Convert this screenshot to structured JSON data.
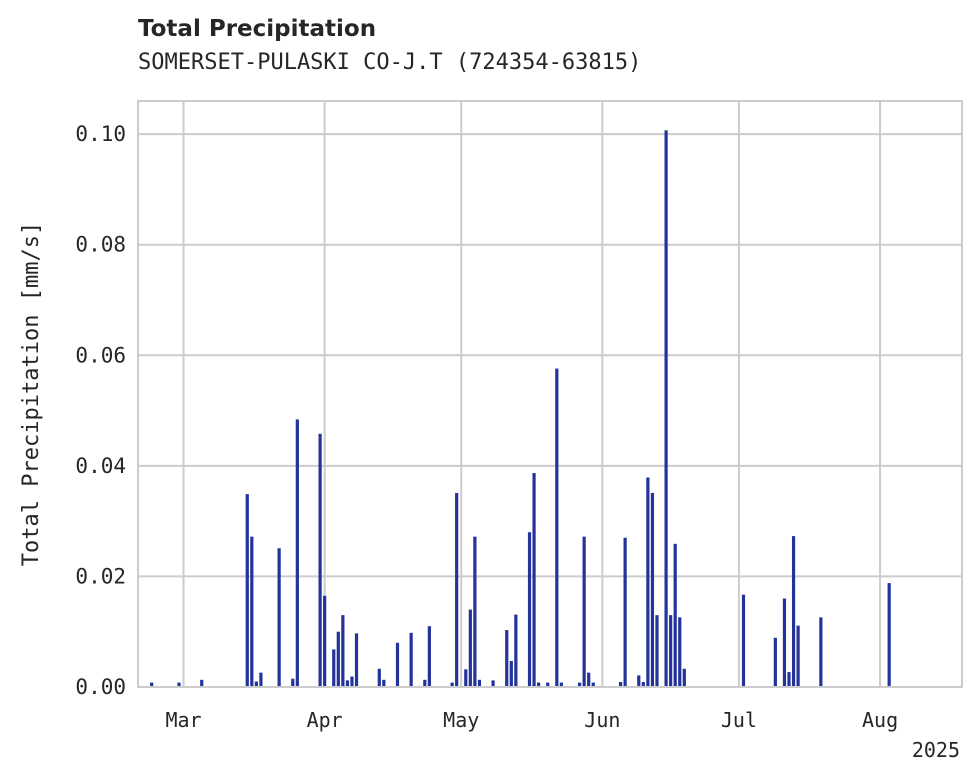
{
  "title": "Total Precipitation",
  "subtitle": "SOMERSET-PULASKI CO-J.T (724354-63815)",
  "colors": {
    "bar": "#23339a",
    "grid": "#cccccc",
    "text": "#262626"
  },
  "chart_data": {
    "type": "bar",
    "ylabel": "Total Precipitation [mm/s]",
    "xlabel": "",
    "x_year_label": "2025",
    "x_range": [
      "2025-02-19",
      "2025-08-19"
    ],
    "ylim": [
      0,
      0.106
    ],
    "yticks": [
      0.0,
      0.02,
      0.04,
      0.06,
      0.08,
      0.1
    ],
    "ytick_labels": [
      "0.00",
      "0.02",
      "0.04",
      "0.06",
      "0.08",
      "0.10"
    ],
    "xticks": [
      "2025-03-01",
      "2025-04-01",
      "2025-05-01",
      "2025-06-01",
      "2025-07-01",
      "2025-08-01"
    ],
    "xtick_labels": [
      "Mar",
      "Apr",
      "May",
      "Jun",
      "Jul",
      "Aug"
    ],
    "grid": true,
    "series": [
      {
        "x": [
          "2025-02-22",
          "2025-02-28",
          "2025-03-05",
          "2025-03-15",
          "2025-03-16",
          "2025-03-17",
          "2025-03-18",
          "2025-03-22",
          "2025-03-25",
          "2025-03-26",
          "2025-03-31",
          "2025-04-01",
          "2025-04-03",
          "2025-04-04",
          "2025-04-05",
          "2025-04-06",
          "2025-04-07",
          "2025-04-08",
          "2025-04-13",
          "2025-04-14",
          "2025-04-17",
          "2025-04-20",
          "2025-04-23",
          "2025-04-24",
          "2025-04-29",
          "2025-04-30",
          "2025-05-02",
          "2025-05-03",
          "2025-05-04",
          "2025-05-05",
          "2025-05-08",
          "2025-05-11",
          "2025-05-12",
          "2025-05-13",
          "2025-05-16",
          "2025-05-17",
          "2025-05-18",
          "2025-05-20",
          "2025-05-22",
          "2025-05-23",
          "2025-05-27",
          "2025-05-28",
          "2025-05-29",
          "2025-05-30",
          "2025-06-05",
          "2025-06-06",
          "2025-06-09",
          "2025-06-10",
          "2025-06-11",
          "2025-06-12",
          "2025-06-13",
          "2025-06-15",
          "2025-06-16",
          "2025-06-17",
          "2025-06-18",
          "2025-06-19",
          "2025-07-02",
          "2025-07-09",
          "2025-07-11",
          "2025-07-12",
          "2025-07-13",
          "2025-07-14",
          "2025-07-19",
          "2025-08-03"
        ],
        "values": [
          0.0008,
          0.0008,
          0.0013,
          0.0349,
          0.0272,
          0.001,
          0.0026,
          0.0251,
          0.0015,
          0.0484,
          0.0458,
          0.0165,
          0.0068,
          0.01,
          0.013,
          0.0012,
          0.0019,
          0.0097,
          0.0033,
          0.0013,
          0.008,
          0.0098,
          0.0013,
          0.011,
          0.0008,
          0.0351,
          0.0032,
          0.014,
          0.0272,
          0.0013,
          0.0012,
          0.0103,
          0.0047,
          0.0131,
          0.028,
          0.0387,
          0.0008,
          0.0008,
          0.0576,
          0.0008,
          0.0008,
          0.0272,
          0.0026,
          0.0008,
          0.0009,
          0.027,
          0.0021,
          0.0009,
          0.0379,
          0.0351,
          0.013,
          0.1007,
          0.013,
          0.0259,
          0.0126,
          0.0033,
          0.0167,
          0.0089,
          0.016,
          0.0027,
          0.0273,
          0.0111,
          0.0126,
          0.0188
        ]
      }
    ]
  }
}
